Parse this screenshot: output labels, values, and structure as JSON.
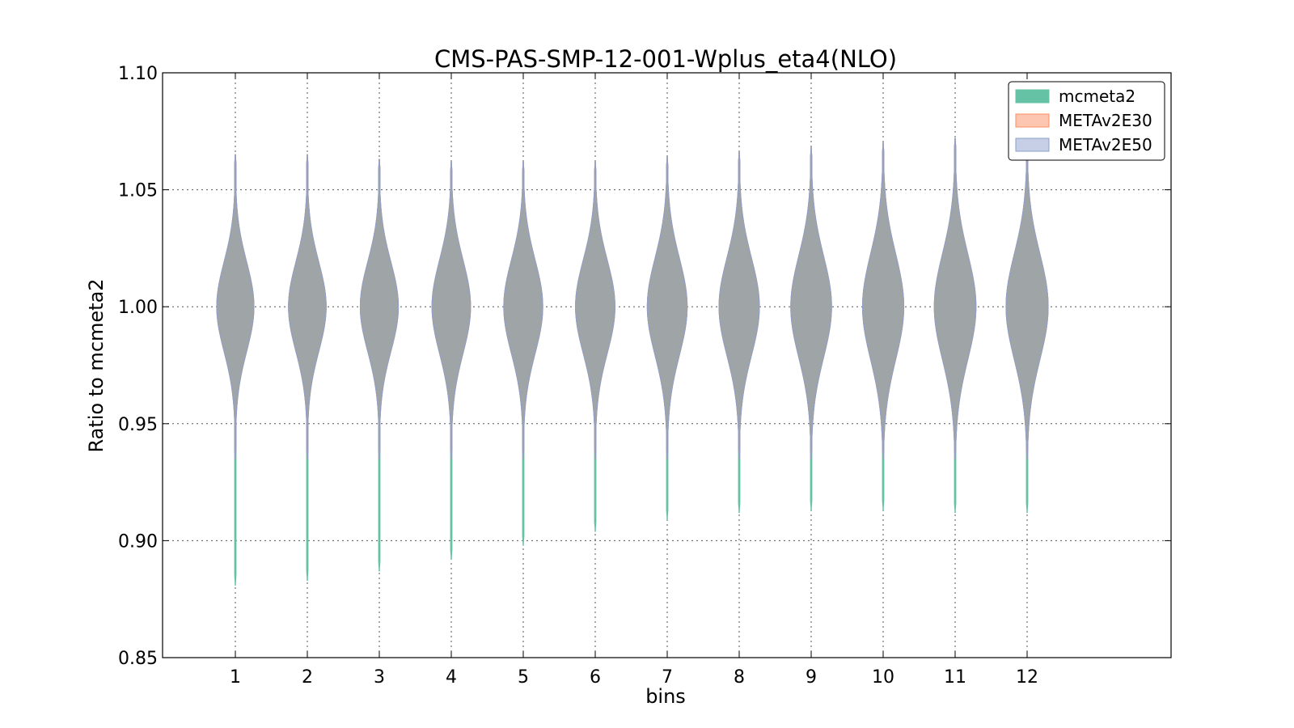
{
  "chart_data": {
    "type": "violin",
    "title": "CMS-PAS-SMP-12-001-Wplus_eta4(NLO)",
    "xlabel": "bins",
    "ylabel": "Ratio to mcmeta2",
    "ylim": [
      0.85,
      1.1
    ],
    "yticks": [
      "0.85",
      "0.90",
      "0.95",
      "1.00",
      "1.05",
      "1.10"
    ],
    "categories": [
      "1",
      "2",
      "3",
      "4",
      "5",
      "6",
      "7",
      "8",
      "9",
      "10",
      "11",
      "12"
    ],
    "grid": true,
    "legend_position": "top-right",
    "series": [
      {
        "name": "mcmeta2",
        "color": "#66c2a5",
        "min": [
          0.881,
          0.883,
          0.887,
          0.892,
          0.898,
          0.904,
          0.909,
          0.912,
          0.913,
          0.913,
          0.912,
          0.912
        ],
        "max": [
          1.065,
          1.065,
          1.063,
          1.062,
          1.062,
          1.062,
          1.064,
          1.066,
          1.068,
          1.07,
          1.072,
          1.067
        ],
        "core_halfwidth": [
          0.022,
          0.022,
          0.022,
          0.023,
          0.023,
          0.023,
          0.024,
          0.024,
          0.025,
          0.026,
          0.026,
          0.026
        ]
      },
      {
        "name": "METAv2E30",
        "color": "#fc8d62",
        "min": [
          0.935,
          0.935,
          0.935,
          0.935,
          0.935,
          0.935,
          0.935,
          0.935,
          0.935,
          0.935,
          0.935,
          0.935
        ],
        "max": [
          1.065,
          1.065,
          1.063,
          1.062,
          1.062,
          1.062,
          1.064,
          1.066,
          1.068,
          1.07,
          1.072,
          1.067
        ],
        "core_halfwidth": [
          0.022,
          0.022,
          0.022,
          0.023,
          0.023,
          0.023,
          0.024,
          0.024,
          0.025,
          0.026,
          0.026,
          0.026
        ]
      },
      {
        "name": "METAv2E50",
        "color": "#8da0cb",
        "min": [
          0.935,
          0.935,
          0.935,
          0.935,
          0.935,
          0.935,
          0.935,
          0.935,
          0.935,
          0.935,
          0.935,
          0.935
        ],
        "max": [
          1.065,
          1.065,
          1.063,
          1.062,
          1.062,
          1.062,
          1.064,
          1.066,
          1.068,
          1.07,
          1.072,
          1.067
        ],
        "core_halfwidth": [
          0.022,
          0.022,
          0.022,
          0.023,
          0.023,
          0.023,
          0.024,
          0.024,
          0.025,
          0.026,
          0.026,
          0.026
        ]
      }
    ]
  }
}
